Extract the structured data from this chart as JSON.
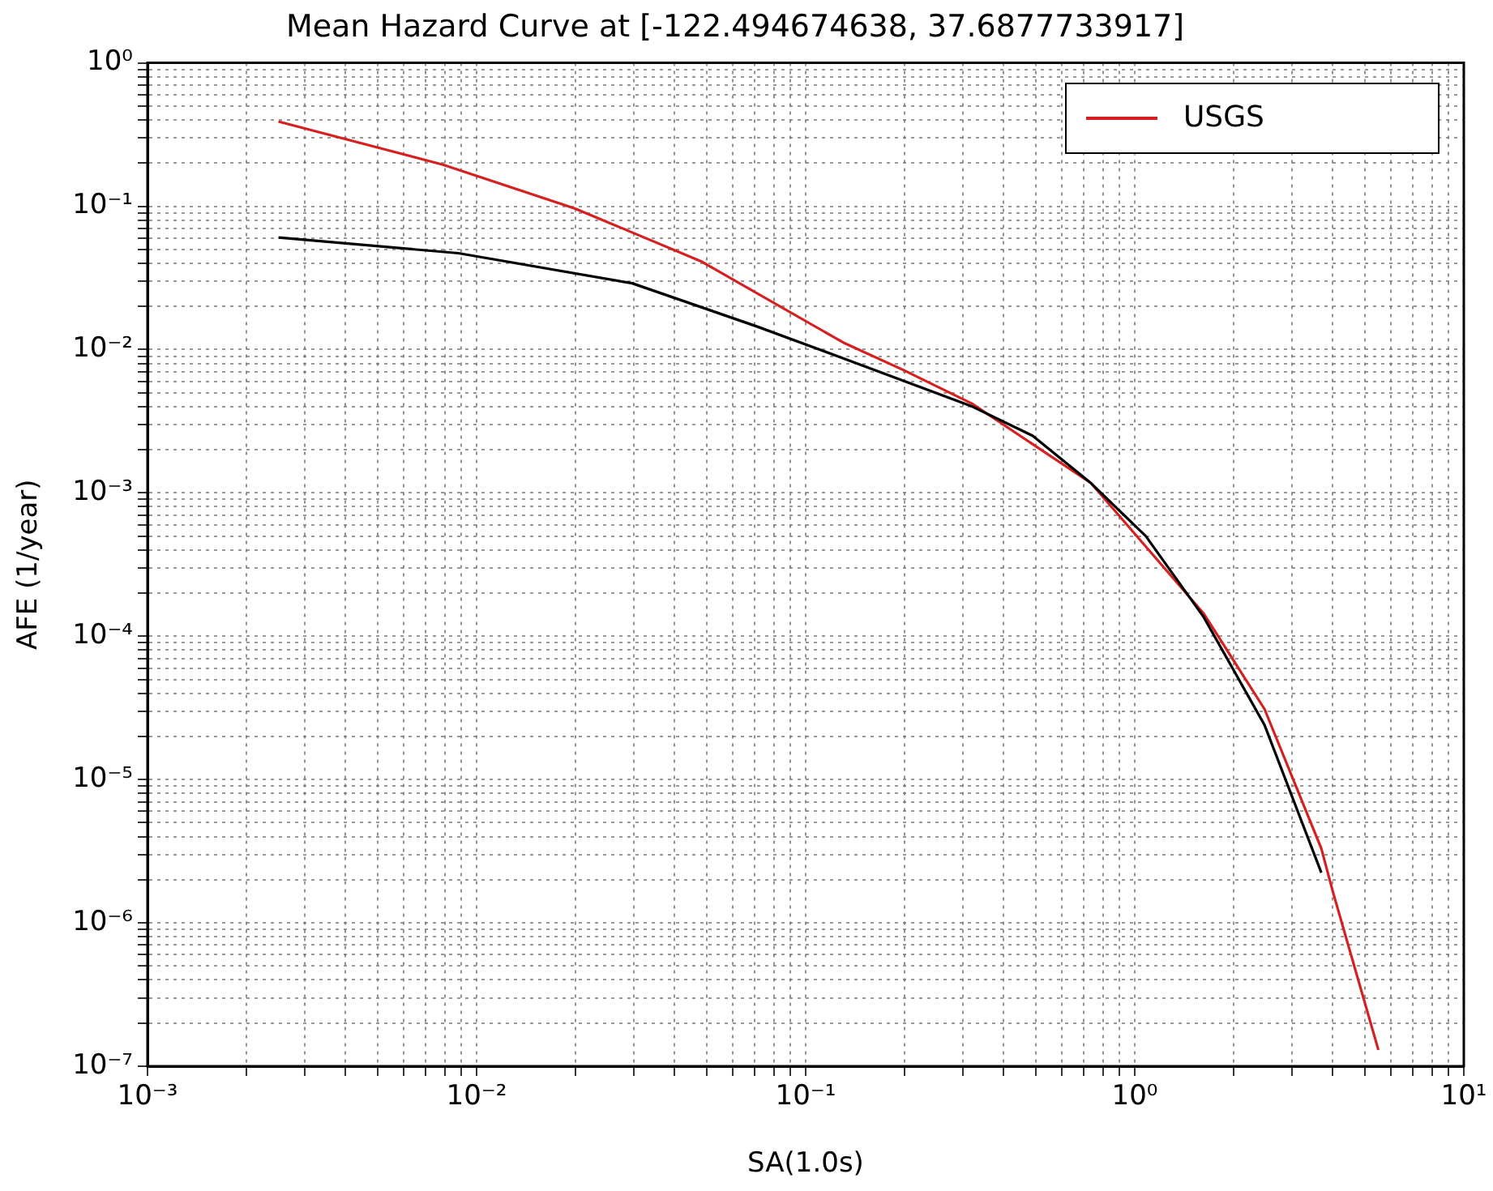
{
  "chart_data": {
    "type": "line",
    "title": "Mean Hazard Curve at [-122.494674638, 37.6877733917]",
    "xlabel": "SA(1.0s)",
    "ylabel": "AFE (1/year)",
    "log": "xy",
    "grid": true,
    "legend": "top right",
    "marker": "none",
    "line_style": "solid",
    "xlim": [
      0.001,
      10
    ],
    "ylim": [
      1e-07,
      1
    ],
    "xticks": [
      {
        "value": 0.001,
        "label": "10⁻³"
      },
      {
        "value": 0.002,
        "label": null
      },
      {
        "value": 0.003,
        "label": null
      },
      {
        "value": 0.004,
        "label": null
      },
      {
        "value": 0.005,
        "label": null
      },
      {
        "value": 0.006,
        "label": null
      },
      {
        "value": 0.007,
        "label": null
      },
      {
        "value": 0.008,
        "label": null
      },
      {
        "value": 0.009,
        "label": null
      },
      {
        "value": 0.01,
        "label": "10⁻²"
      },
      {
        "value": 0.02,
        "label": null
      },
      {
        "value": 0.03,
        "label": null
      },
      {
        "value": 0.04,
        "label": null
      },
      {
        "value": 0.05,
        "label": null
      },
      {
        "value": 0.06,
        "label": null
      },
      {
        "value": 0.07,
        "label": null
      },
      {
        "value": 0.08,
        "label": null
      },
      {
        "value": 0.09,
        "label": null
      },
      {
        "value": 0.1,
        "label": "10⁻¹"
      },
      {
        "value": 0.2,
        "label": null
      },
      {
        "value": 0.3,
        "label": null
      },
      {
        "value": 0.4,
        "label": null
      },
      {
        "value": 0.5,
        "label": null
      },
      {
        "value": 0.6,
        "label": null
      },
      {
        "value": 0.7,
        "label": null
      },
      {
        "value": 0.8,
        "label": null
      },
      {
        "value": 0.9,
        "label": null
      },
      {
        "value": 1,
        "label": "10⁰"
      },
      {
        "value": 2,
        "label": null
      },
      {
        "value": 3,
        "label": null
      },
      {
        "value": 4,
        "label": null
      },
      {
        "value": 5,
        "label": null
      },
      {
        "value": 6,
        "label": null
      },
      {
        "value": 7,
        "label": null
      },
      {
        "value": 8,
        "label": null
      },
      {
        "value": 9,
        "label": null
      },
      {
        "value": 10,
        "label": "10¹"
      }
    ],
    "yticks": [
      {
        "value": 1e-07,
        "label": "10⁻⁷"
      },
      {
        "value": 2e-07,
        "label": null
      },
      {
        "value": 3e-07,
        "label": null
      },
      {
        "value": 4e-07,
        "label": null
      },
      {
        "value": 5e-07,
        "label": null
      },
      {
        "value": 6e-07,
        "label": null
      },
      {
        "value": 7e-07,
        "label": null
      },
      {
        "value": 8e-07,
        "label": null
      },
      {
        "value": 9e-07,
        "label": null
      },
      {
        "value": 1e-06,
        "label": "10⁻⁶"
      },
      {
        "value": 2e-06,
        "label": null
      },
      {
        "value": 3e-06,
        "label": null
      },
      {
        "value": 4e-06,
        "label": null
      },
      {
        "value": 5e-06,
        "label": null
      },
      {
        "value": 6e-06,
        "label": null
      },
      {
        "value": 7e-06,
        "label": null
      },
      {
        "value": 8e-06,
        "label": null
      },
      {
        "value": 9e-06,
        "label": null
      },
      {
        "value": 1e-05,
        "label": "10⁻⁵"
      },
      {
        "value": 2e-05,
        "label": null
      },
      {
        "value": 3e-05,
        "label": null
      },
      {
        "value": 4e-05,
        "label": null
      },
      {
        "value": 5e-05,
        "label": null
      },
      {
        "value": 6e-05,
        "label": null
      },
      {
        "value": 7e-05,
        "label": null
      },
      {
        "value": 8e-05,
        "label": null
      },
      {
        "value": 9e-05,
        "label": null
      },
      {
        "value": 0.0001,
        "label": "10⁻⁴"
      },
      {
        "value": 0.0002,
        "label": null
      },
      {
        "value": 0.0003,
        "label": null
      },
      {
        "value": 0.0004,
        "label": null
      },
      {
        "value": 0.0005,
        "label": null
      },
      {
        "value": 0.0006,
        "label": null
      },
      {
        "value": 0.0007,
        "label": null
      },
      {
        "value": 0.0008,
        "label": null
      },
      {
        "value": 0.0009,
        "label": null
      },
      {
        "value": 0.001,
        "label": "10⁻³"
      },
      {
        "value": 0.002,
        "label": null
      },
      {
        "value": 0.003,
        "label": null
      },
      {
        "value": 0.004,
        "label": null
      },
      {
        "value": 0.005,
        "label": null
      },
      {
        "value": 0.006,
        "label": null
      },
      {
        "value": 0.007,
        "label": null
      },
      {
        "value": 0.008,
        "label": null
      },
      {
        "value": 0.009,
        "label": null
      },
      {
        "value": 0.01,
        "label": "10⁻²"
      },
      {
        "value": 0.02,
        "label": null
      },
      {
        "value": 0.03,
        "label": null
      },
      {
        "value": 0.04,
        "label": null
      },
      {
        "value": 0.05,
        "label": null
      },
      {
        "value": 0.06,
        "label": null
      },
      {
        "value": 0.07,
        "label": null
      },
      {
        "value": 0.08,
        "label": null
      },
      {
        "value": 0.09,
        "label": null
      },
      {
        "value": 0.1,
        "label": "10⁻¹"
      },
      {
        "value": 0.2,
        "label": null
      },
      {
        "value": 0.3,
        "label": null
      },
      {
        "value": 0.4,
        "label": null
      },
      {
        "value": 0.5,
        "label": null
      },
      {
        "value": 0.6,
        "label": null
      },
      {
        "value": 0.7,
        "label": null
      },
      {
        "value": 0.8,
        "label": null
      },
      {
        "value": 0.9,
        "label": null
      },
      {
        "value": 1,
        "label": "10⁰"
      }
    ],
    "series": [
      {
        "color": "#000000",
        "x": [
          0.0025,
          0.0088,
          0.0297,
          0.071,
          0.13,
          0.321,
          0.49,
          0.736,
          1.08,
          1.62,
          2.48,
          3.69
        ],
        "values": [
          0.0605,
          0.047,
          0.029,
          0.0145,
          0.0087,
          0.004,
          0.0025,
          0.00117,
          0.0005,
          0.000136,
          2.4e-05,
          2.24e-06
        ]
      },
      {
        "name": "USGS",
        "color": "#d62020",
        "x": [
          0.0025,
          0.0079,
          0.02,
          0.0484,
          0.13,
          0.198,
          0.32,
          0.736,
          1.62,
          2.48,
          3.69,
          4.0,
          5.5
        ],
        "values": [
          0.39,
          0.195,
          0.096,
          0.041,
          0.0112,
          0.0072,
          0.0042,
          0.00117,
          0.000144,
          3.1e-05,
          3.3e-06,
          1.65e-06,
          1.3e-07
        ]
      }
    ]
  }
}
